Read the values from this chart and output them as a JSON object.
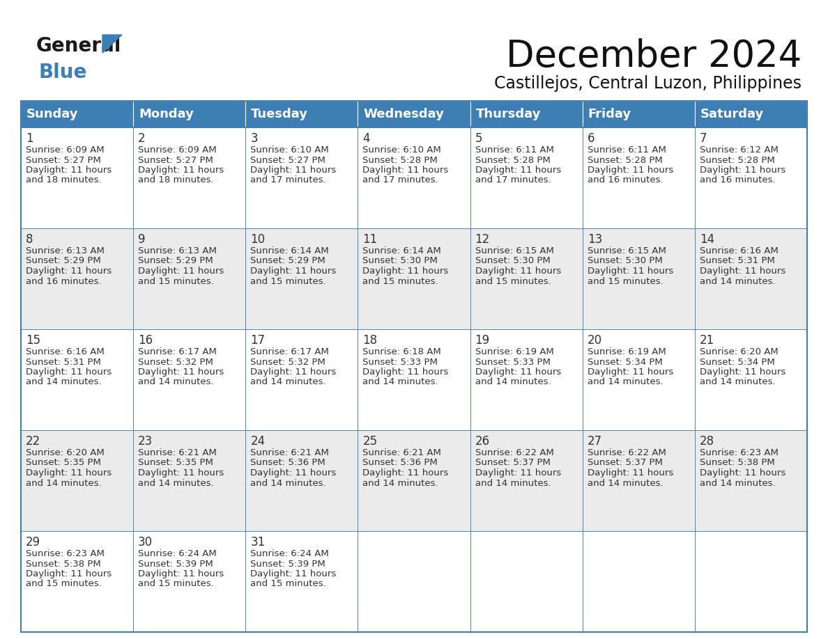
{
  "title": "December 2024",
  "subtitle": "Castillejos, Central Luzon, Philippines",
  "header_color": "#3D7EB5",
  "header_text_color": "#FFFFFF",
  "cell_bg_even": "#FFFFFF",
  "cell_bg_odd": "#EBEBEB",
  "border_color": "#3D7EB5",
  "text_color": "#333333",
  "day_headers": [
    "Sunday",
    "Monday",
    "Tuesday",
    "Wednesday",
    "Thursday",
    "Friday",
    "Saturday"
  ],
  "title_fontsize": 38,
  "subtitle_fontsize": 17,
  "header_fontsize": 13,
  "cell_day_fontsize": 12,
  "cell_info_fontsize": 9.5,
  "weeks": [
    [
      {
        "day": 1,
        "sunrise": "6:09 AM",
        "sunset": "5:27 PM",
        "daylight_hrs": 11,
        "daylight_min": 18
      },
      {
        "day": 2,
        "sunrise": "6:09 AM",
        "sunset": "5:27 PM",
        "daylight_hrs": 11,
        "daylight_min": 18
      },
      {
        "day": 3,
        "sunrise": "6:10 AM",
        "sunset": "5:27 PM",
        "daylight_hrs": 11,
        "daylight_min": 17
      },
      {
        "day": 4,
        "sunrise": "6:10 AM",
        "sunset": "5:28 PM",
        "daylight_hrs": 11,
        "daylight_min": 17
      },
      {
        "day": 5,
        "sunrise": "6:11 AM",
        "sunset": "5:28 PM",
        "daylight_hrs": 11,
        "daylight_min": 17
      },
      {
        "day": 6,
        "sunrise": "6:11 AM",
        "sunset": "5:28 PM",
        "daylight_hrs": 11,
        "daylight_min": 16
      },
      {
        "day": 7,
        "sunrise": "6:12 AM",
        "sunset": "5:28 PM",
        "daylight_hrs": 11,
        "daylight_min": 16
      }
    ],
    [
      {
        "day": 8,
        "sunrise": "6:13 AM",
        "sunset": "5:29 PM",
        "daylight_hrs": 11,
        "daylight_min": 16
      },
      {
        "day": 9,
        "sunrise": "6:13 AM",
        "sunset": "5:29 PM",
        "daylight_hrs": 11,
        "daylight_min": 15
      },
      {
        "day": 10,
        "sunrise": "6:14 AM",
        "sunset": "5:29 PM",
        "daylight_hrs": 11,
        "daylight_min": 15
      },
      {
        "day": 11,
        "sunrise": "6:14 AM",
        "sunset": "5:30 PM",
        "daylight_hrs": 11,
        "daylight_min": 15
      },
      {
        "day": 12,
        "sunrise": "6:15 AM",
        "sunset": "5:30 PM",
        "daylight_hrs": 11,
        "daylight_min": 15
      },
      {
        "day": 13,
        "sunrise": "6:15 AM",
        "sunset": "5:30 PM",
        "daylight_hrs": 11,
        "daylight_min": 15
      },
      {
        "day": 14,
        "sunrise": "6:16 AM",
        "sunset": "5:31 PM",
        "daylight_hrs": 11,
        "daylight_min": 14
      }
    ],
    [
      {
        "day": 15,
        "sunrise": "6:16 AM",
        "sunset": "5:31 PM",
        "daylight_hrs": 11,
        "daylight_min": 14
      },
      {
        "day": 16,
        "sunrise": "6:17 AM",
        "sunset": "5:32 PM",
        "daylight_hrs": 11,
        "daylight_min": 14
      },
      {
        "day": 17,
        "sunrise": "6:17 AM",
        "sunset": "5:32 PM",
        "daylight_hrs": 11,
        "daylight_min": 14
      },
      {
        "day": 18,
        "sunrise": "6:18 AM",
        "sunset": "5:33 PM",
        "daylight_hrs": 11,
        "daylight_min": 14
      },
      {
        "day": 19,
        "sunrise": "6:19 AM",
        "sunset": "5:33 PM",
        "daylight_hrs": 11,
        "daylight_min": 14
      },
      {
        "day": 20,
        "sunrise": "6:19 AM",
        "sunset": "5:34 PM",
        "daylight_hrs": 11,
        "daylight_min": 14
      },
      {
        "day": 21,
        "sunrise": "6:20 AM",
        "sunset": "5:34 PM",
        "daylight_hrs": 11,
        "daylight_min": 14
      }
    ],
    [
      {
        "day": 22,
        "sunrise": "6:20 AM",
        "sunset": "5:35 PM",
        "daylight_hrs": 11,
        "daylight_min": 14
      },
      {
        "day": 23,
        "sunrise": "6:21 AM",
        "sunset": "5:35 PM",
        "daylight_hrs": 11,
        "daylight_min": 14
      },
      {
        "day": 24,
        "sunrise": "6:21 AM",
        "sunset": "5:36 PM",
        "daylight_hrs": 11,
        "daylight_min": 14
      },
      {
        "day": 25,
        "sunrise": "6:21 AM",
        "sunset": "5:36 PM",
        "daylight_hrs": 11,
        "daylight_min": 14
      },
      {
        "day": 26,
        "sunrise": "6:22 AM",
        "sunset": "5:37 PM",
        "daylight_hrs": 11,
        "daylight_min": 14
      },
      {
        "day": 27,
        "sunrise": "6:22 AM",
        "sunset": "5:37 PM",
        "daylight_hrs": 11,
        "daylight_min": 14
      },
      {
        "day": 28,
        "sunrise": "6:23 AM",
        "sunset": "5:38 PM",
        "daylight_hrs": 11,
        "daylight_min": 14
      }
    ],
    [
      {
        "day": 29,
        "sunrise": "6:23 AM",
        "sunset": "5:38 PM",
        "daylight_hrs": 11,
        "daylight_min": 15
      },
      {
        "day": 30,
        "sunrise": "6:24 AM",
        "sunset": "5:39 PM",
        "daylight_hrs": 11,
        "daylight_min": 15
      },
      {
        "day": 31,
        "sunrise": "6:24 AM",
        "sunset": "5:39 PM",
        "daylight_hrs": 11,
        "daylight_min": 15
      },
      null,
      null,
      null,
      null
    ]
  ]
}
